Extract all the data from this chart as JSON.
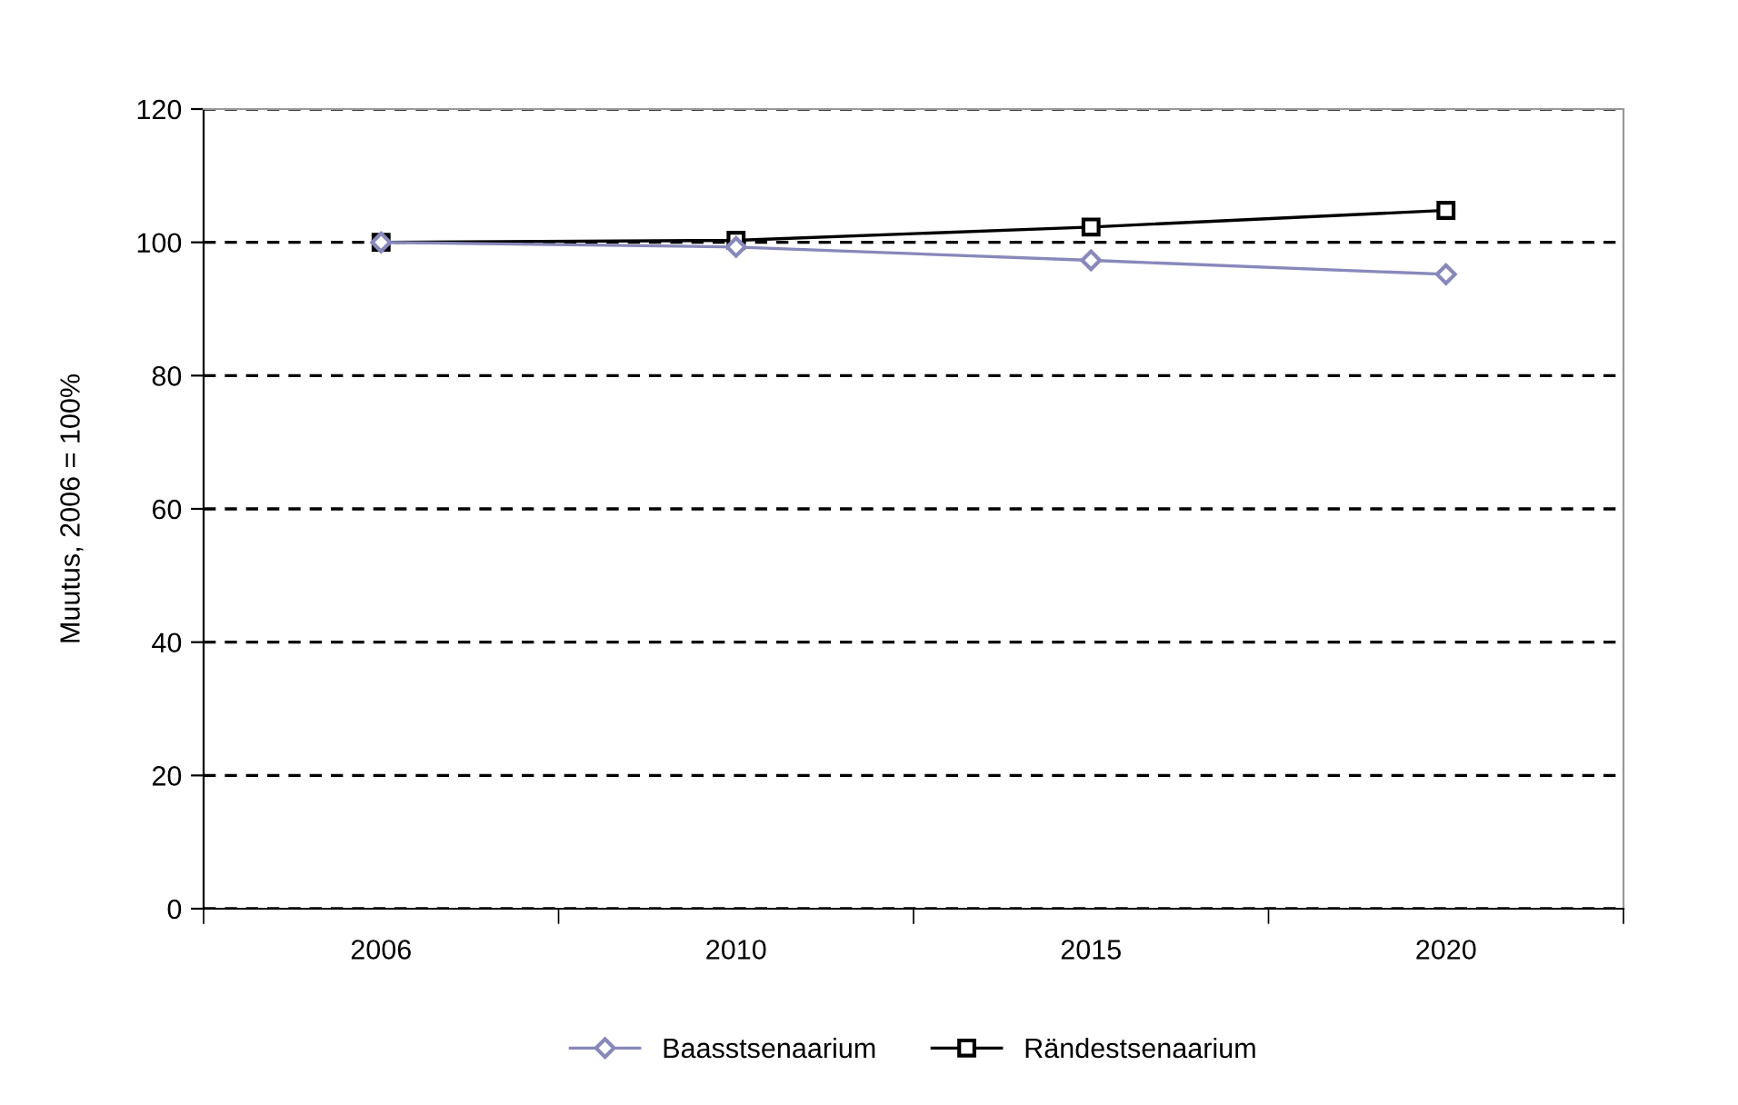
{
  "chart_data": {
    "type": "line",
    "ylabel": "Muutus, 2006 = 100%",
    "categories": [
      "2006",
      "2010",
      "2015",
      "2020"
    ],
    "series": [
      {
        "name": "Baasstsenaarium",
        "color": "#8888bb",
        "marker": "diamond",
        "values": [
          100,
          99.3,
          97.3,
          95.2
        ]
      },
      {
        "name": "Rändestsenaarium",
        "color": "#000000",
        "marker": "square",
        "values": [
          100,
          100.3,
          102.3,
          104.8
        ]
      }
    ],
    "ylim": [
      0,
      120
    ],
    "yticks": [
      0,
      20,
      40,
      60,
      80,
      100,
      120
    ],
    "grid": "y",
    "line_style": "solid",
    "legend": "bottom"
  }
}
